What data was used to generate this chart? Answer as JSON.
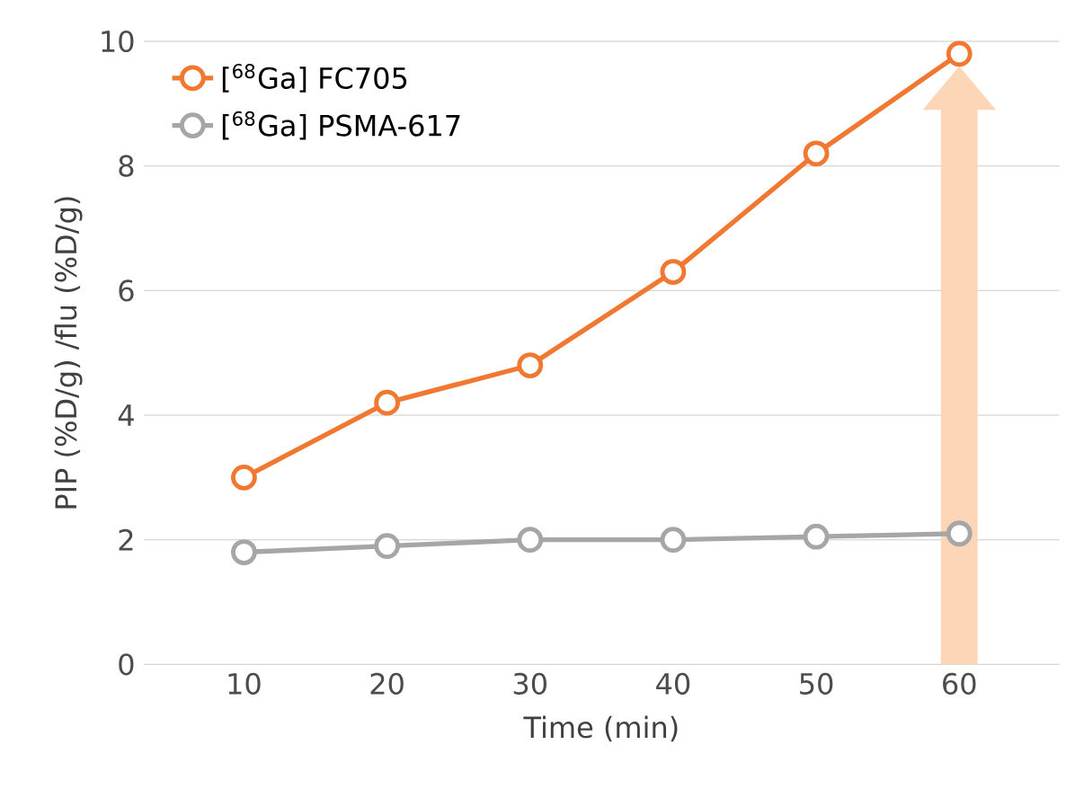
{
  "chart_data": {
    "type": "line",
    "xlabel": "Time (min)",
    "ylabel": "PIP (%D/g) /flu (%D/g)",
    "x": [
      10,
      20,
      30,
      40,
      50,
      60
    ],
    "series": [
      {
        "name": "[$^{68}$Ga] FC705",
        "color": "#f07830",
        "values": [
          3.0,
          4.2,
          4.8,
          6.3,
          8.2,
          9.8
        ]
      },
      {
        "name": "[$^{68}$Ga] PSMA-617",
        "color": "#a6a6a6",
        "values": [
          1.8,
          1.9,
          2.0,
          2.0,
          2.05,
          2.1
        ]
      }
    ],
    "xlim": [
      3,
      67
    ],
    "xticks": [
      10,
      20,
      30,
      40,
      50,
      60
    ],
    "ylim": [
      0,
      10
    ],
    "yticks": [
      0,
      2,
      4,
      6,
      8,
      10
    ],
    "grid": "y",
    "legend": "top left",
    "marker": "circle",
    "line_style": "solid"
  }
}
